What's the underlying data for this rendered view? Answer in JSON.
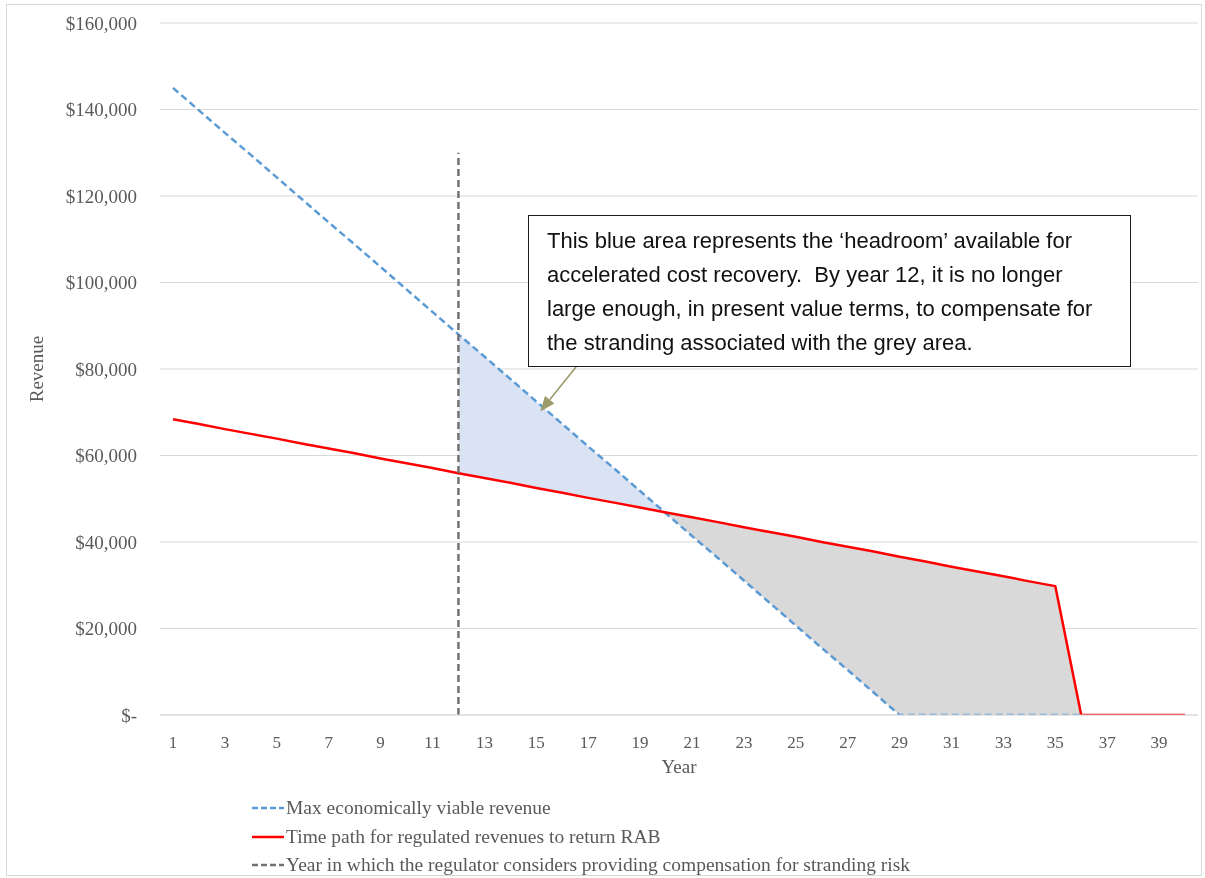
{
  "chart_data": {
    "type": "line",
    "xlabel": "Year",
    "ylabel": "Revenue",
    "annotations": [
      "This blue area represents the ‘headroom’ available for accelerated cost recovery.  By year 12, it is no longer large enough, in present value terms, to compensate for the stranding associated with the grey area."
    ],
    "x": [
      1,
      2,
      3,
      4,
      5,
      6,
      7,
      8,
      9,
      10,
      11,
      12,
      13,
      14,
      15,
      16,
      17,
      18,
      19,
      20,
      21,
      22,
      23,
      24,
      25,
      26,
      27,
      28,
      29,
      30,
      31,
      32,
      33,
      34,
      35,
      36,
      37,
      38,
      39,
      40
    ],
    "xlim": [
      0.5,
      40.5
    ],
    "xticks": [
      1,
      3,
      5,
      7,
      9,
      11,
      13,
      15,
      17,
      19,
      21,
      23,
      25,
      27,
      29,
      31,
      33,
      35,
      37,
      39
    ],
    "ylim": [
      0,
      160000
    ],
    "yticks": [
      {
        "value": 0,
        "label": "$-"
      },
      {
        "value": 20000,
        "label": "$20,000"
      },
      {
        "value": 40000,
        "label": "$40,000"
      },
      {
        "value": 60000,
        "label": "$60,000"
      },
      {
        "value": 80000,
        "label": "$80,000"
      },
      {
        "value": 100000,
        "label": "$100,000"
      },
      {
        "value": 120000,
        "label": "$120,000"
      },
      {
        "value": 140000,
        "label": "$140,000"
      },
      {
        "value": 160000,
        "label": "$160,000"
      }
    ],
    "grid": "y",
    "legend": "bottom",
    "marker": "none",
    "series": [
      {
        "name": "Max economically viable revenue",
        "color": "#5b9bd5",
        "line_style": "dashed",
        "values": [
          145000,
          139800,
          134600,
          129500,
          124300,
          119100,
          113900,
          108800,
          103600,
          98400,
          93200,
          88000,
          82900,
          77700,
          72500,
          67300,
          62100,
          57000,
          51800,
          46600,
          41400,
          36300,
          31100,
          25900,
          20700,
          15500,
          10400,
          5200,
          0,
          0,
          0,
          0,
          0,
          0,
          0,
          0,
          null,
          null,
          null,
          null
        ]
      },
      {
        "name": "Time path for regulated revenues to return RAB",
        "color": "#ff0000",
        "line_style": "solid",
        "values": [
          68400,
          67300,
          66100,
          65000,
          63900,
          62700,
          61600,
          60500,
          59300,
          58200,
          57100,
          55900,
          54800,
          53700,
          52500,
          51400,
          50200,
          49100,
          48000,
          46800,
          45700,
          44600,
          43400,
          42300,
          41200,
          40000,
          38900,
          37800,
          36600,
          35500,
          34300,
          33200,
          32100,
          30900,
          29800,
          0,
          0,
          0,
          0,
          0
        ]
      },
      {
        "name": "Year in which the regulator considers providing compensation for stranding risk",
        "color": "#767171",
        "line_style": "dashed",
        "x": [
          12,
          12
        ],
        "values": [
          0,
          130000
        ]
      },
      {
        "type": "area",
        "color": "#dae3f3",
        "x": [
          12,
          13,
          14,
          15,
          16,
          17,
          18,
          19,
          19.95
        ],
        "values": [
          null,
          null,
          null,
          null,
          null,
          null,
          null,
          null,
          null
        ],
        "upper": [
          88000,
          82900,
          77700,
          72500,
          67300,
          62100,
          57000,
          51800,
          46900
        ],
        "lower": [
          55900,
          54800,
          53700,
          52500,
          51400,
          50200,
          49100,
          48000,
          46900
        ]
      },
      {
        "type": "area",
        "color": "#d9d9d9",
        "x": [
          19.95,
          20,
          21,
          22,
          23,
          24,
          25,
          26,
          27,
          28,
          29,
          30,
          31,
          32,
          33,
          34,
          35,
          36
        ],
        "values": [
          null,
          null,
          null,
          null,
          null,
          null,
          null,
          null,
          null,
          null,
          null,
          null,
          null,
          null,
          null,
          null,
          null,
          null
        ],
        "upper": [
          46900,
          46800,
          45700,
          44600,
          43400,
          42300,
          41200,
          40000,
          38900,
          37800,
          36600,
          35500,
          34300,
          33200,
          32100,
          30900,
          29800,
          0
        ],
        "lower": [
          46900,
          46600,
          41400,
          36300,
          31100,
          25900,
          20700,
          15500,
          10400,
          5200,
          0,
          0,
          0,
          0,
          0,
          0,
          0,
          0
        ]
      }
    ]
  }
}
